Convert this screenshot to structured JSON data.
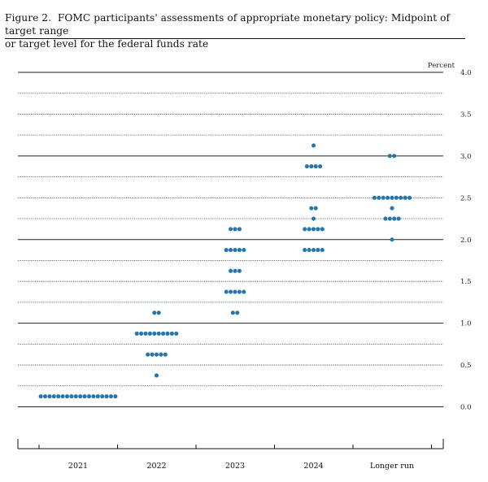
{
  "header": {
    "figure_label": "Figure 2.",
    "title_line1": "FOMC participants' assessments of appropriate monetary policy: Midpoint of target range",
    "title_line2": "or target level for the federal funds rate"
  },
  "chart_data": {
    "type": "scatter",
    "style": "dot plot",
    "ylabel": "Percent",
    "ylim": [
      0,
      4.0
    ],
    "y_tick_labels": [
      "4.0",
      "3.5",
      "3.0",
      "2.5",
      "2.0",
      "1.5",
      "1.0",
      "0.5",
      "0.0"
    ],
    "grid": "dotted horizontal lines every 0.25",
    "categories": [
      "2021",
      "2022",
      "2023",
      "2024",
      "Longer run"
    ],
    "dot_color": "#1f77b4",
    "dots": [
      {
        "category": "2021",
        "levels": [
          {
            "y": 0.125,
            "count": 18
          }
        ]
      },
      {
        "category": "2022",
        "levels": [
          {
            "y": 0.375,
            "count": 1
          },
          {
            "y": 0.625,
            "count": 5
          },
          {
            "y": 0.875,
            "count": 10
          },
          {
            "y": 1.125,
            "count": 2
          }
        ]
      },
      {
        "category": "2023",
        "levels": [
          {
            "y": 1.125,
            "count": 2
          },
          {
            "y": 1.375,
            "count": 5
          },
          {
            "y": 1.625,
            "count": 3
          },
          {
            "y": 1.875,
            "count": 5
          },
          {
            "y": 2.125,
            "count": 3
          }
        ]
      },
      {
        "category": "2024",
        "levels": [
          {
            "y": 1.875,
            "count": 5
          },
          {
            "y": 2.125,
            "count": 5
          },
          {
            "y": 2.25,
            "count": 1
          },
          {
            "y": 2.375,
            "count": 2
          },
          {
            "y": 2.875,
            "count": 4
          },
          {
            "y": 3.125,
            "count": 1
          }
        ]
      },
      {
        "category": "Longer run",
        "levels": [
          {
            "y": 2.0,
            "count": 1
          },
          {
            "y": 2.25,
            "count": 4
          },
          {
            "y": 2.375,
            "count": 1
          },
          {
            "y": 2.5,
            "count": 9
          },
          {
            "y": 3.0,
            "count": 2
          }
        ]
      }
    ]
  }
}
